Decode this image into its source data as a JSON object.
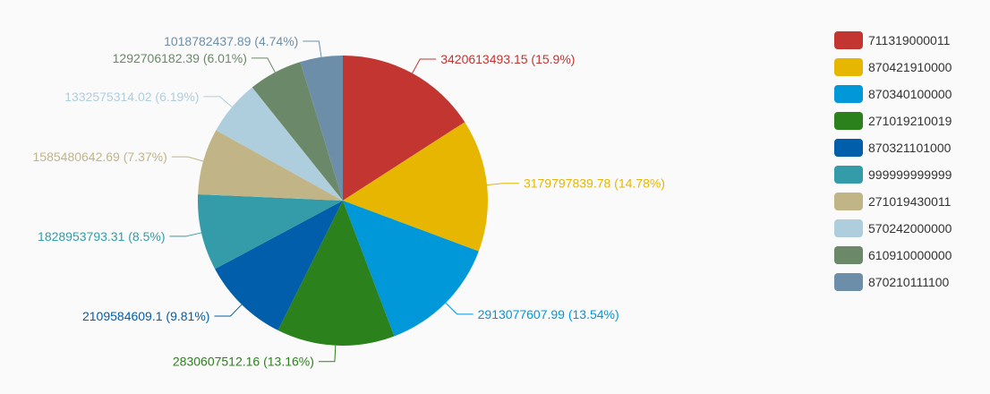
{
  "chart_data": {
    "type": "pie",
    "title": "",
    "series": [
      {
        "name": "711319000011",
        "value": 3420613493.15,
        "percent": 15.9,
        "label": "3420613493.15 (15.9%)",
        "color": "#c23531"
      },
      {
        "name": "870421910000",
        "value": 3179797839.78,
        "percent": 14.78,
        "label": "3179797839.78 (14.78%)",
        "color": "#e6b600"
      },
      {
        "name": "870340100000",
        "value": 2913077607.99,
        "percent": 13.54,
        "label": "2913077607.99 (13.54%)",
        "color": "#0098d9"
      },
      {
        "name": "271019210019",
        "value": 2830607512.16,
        "percent": 13.16,
        "label": "2830607512.16 (13.16%)",
        "color": "#2b821d"
      },
      {
        "name": "870321101000",
        "value": 2109584609.1,
        "percent": 9.81,
        "label": "2109584609.1 (9.81%)",
        "color": "#005eaa"
      },
      {
        "name": "999999999999",
        "value": 1828953793.31,
        "percent": 8.5,
        "label": "1828953793.31 (8.5%)",
        "color": "#339ca8"
      },
      {
        "name": "271019430011",
        "value": 1585480642.69,
        "percent": 7.37,
        "label": "1585480642.69 (7.37%)",
        "color": "#c1b587"
      },
      {
        "name": "570242000000",
        "value": 1332575314.02,
        "percent": 6.19,
        "label": "1332575314.02 (6.19%)",
        "color": "#afcedd"
      },
      {
        "name": "610910000000",
        "value": 1292706182.39,
        "percent": 6.01,
        "label": "1292706182.39 (6.01%)",
        "color": "#6b8969"
      },
      {
        "name": "870210111100",
        "value": 1018782437.89,
        "percent": 4.74,
        "label": "1018782437.89 (4.74%)",
        "color": "#6d8ea9"
      }
    ],
    "legend_position": "right"
  }
}
